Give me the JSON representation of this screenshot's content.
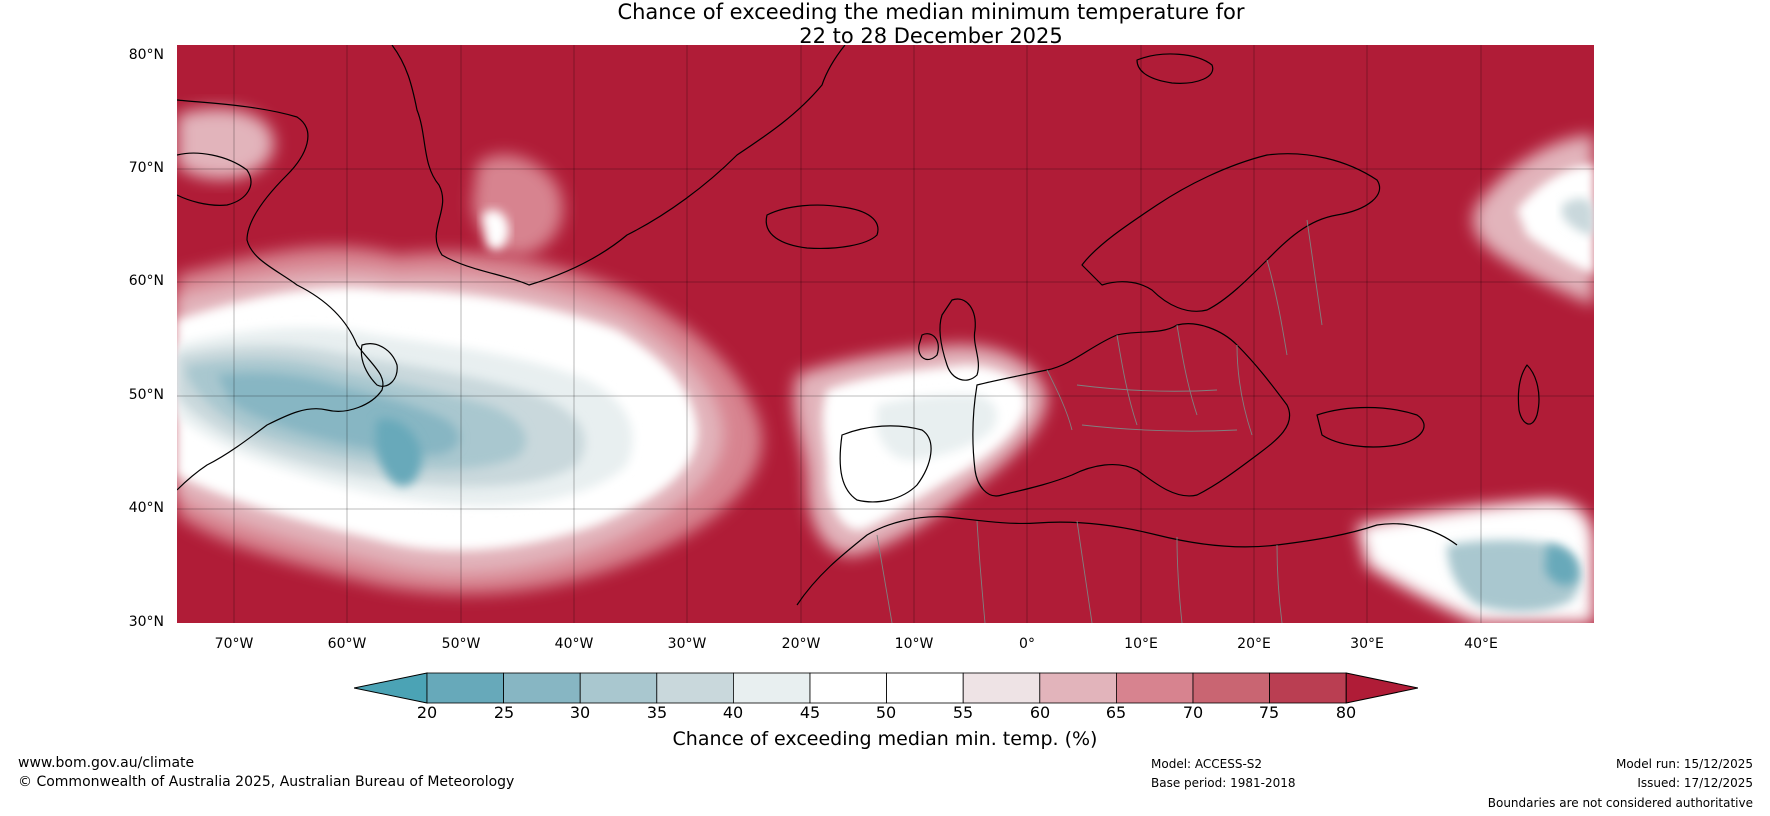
{
  "title": {
    "line1": "Chance of exceeding the median minimum temperature for",
    "line2": "22 to 28 December 2025"
  },
  "map": {
    "lat_ticks": [
      "80°N",
      "70°N",
      "60°N",
      "50°N",
      "40°N",
      "30°N"
    ],
    "lon_ticks": [
      "70°W",
      "60°W",
      "50°W",
      "40°W",
      "30°W",
      "20°W",
      "10°W",
      "0°",
      "10°E",
      "20°E",
      "30°E",
      "40°E"
    ],
    "colors": {
      "ocean_red": "#b01c37",
      "land_stroke": "#000000",
      "border_stroke": "#808080"
    }
  },
  "colorbar": {
    "ticks": [
      "20",
      "25",
      "30",
      "35",
      "40",
      "45",
      "50",
      "55",
      "60",
      "65",
      "70",
      "75",
      "80"
    ],
    "colors": [
      "#4ba3b5",
      "#67a9ba",
      "#87b6c3",
      "#a9c7cf",
      "#c9d8dc",
      "#e8eff0",
      "#ffffff",
      "#ffffff",
      "#eee3e5",
      "#e2b4bb",
      "#d7838f",
      "#c96572",
      "#ba3e52",
      "#b01c37"
    ],
    "label": "Chance of exceeding median min. temp. (%)"
  },
  "footer": {
    "website": "www.bom.gov.au/climate",
    "copyright": "© Commonwealth of Australia 2025, Australian Bureau of Meteorology",
    "model": "Model: ACCESS-S2",
    "base_period": "Base period: 1981-2018",
    "model_run": "Model run: 15/12/2025",
    "issued": "Issued: 17/12/2025",
    "boundaries": "Boundaries are not considered authoritative"
  }
}
